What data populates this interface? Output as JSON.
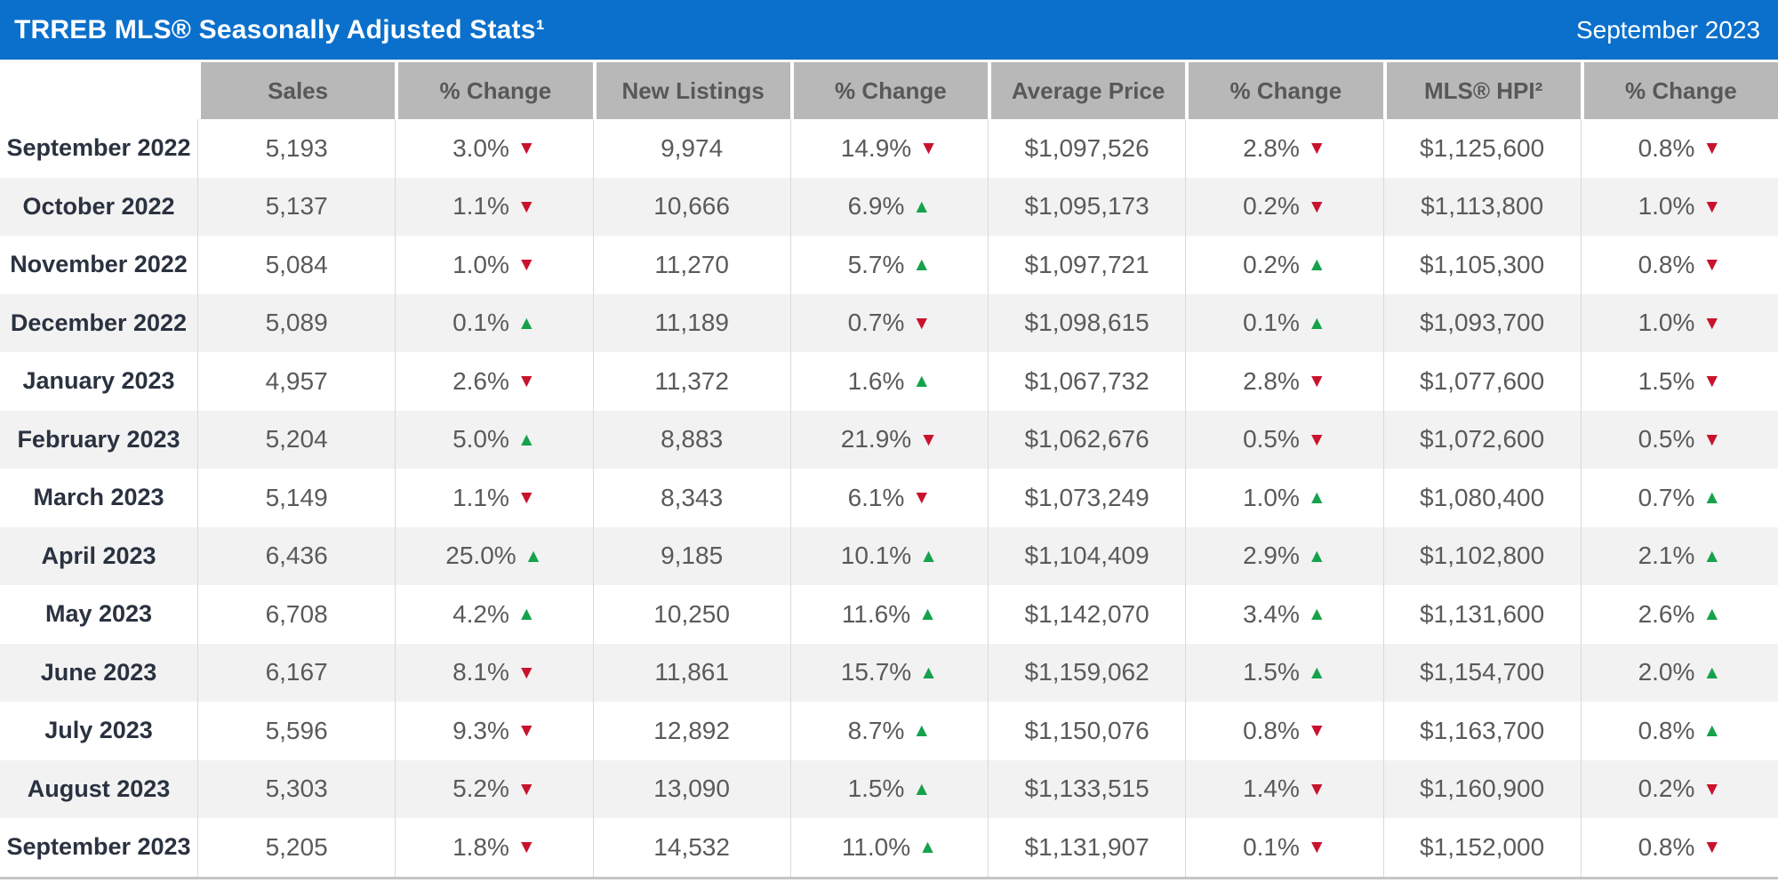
{
  "page": {
    "title_bar": {
      "title": "TRREB MLS® Seasonally Adjusted Stats¹",
      "period": "September 2023"
    }
  },
  "icons": {
    "up_triangle": "▲",
    "down_triangle": "▼"
  },
  "colors": {
    "brand_blue": "#0a70cc",
    "header_gray": "#b8b8b8",
    "header_text": "#57585a",
    "up_green": "#16a24c",
    "down_red": "#c9132e",
    "alt_row": "#f2f2f2",
    "value_text": "#595a5c",
    "month_text": "#2a3240"
  },
  "chart_data": {
    "type": "table",
    "title": "TRREB MLS® Seasonally Adjusted Stats¹",
    "period": "September 2023",
    "corner_header": "",
    "columns": [
      "Sales",
      "% Change",
      "New Listings",
      "% Change",
      "Average Price",
      "% Change",
      "MLS® HPI²",
      "% Change"
    ],
    "rows": [
      {
        "month": "September 2022",
        "cells": [
          {
            "text": "5,193"
          },
          {
            "text": "3.0%",
            "dir": "down"
          },
          {
            "text": "9,974"
          },
          {
            "text": "14.9%",
            "dir": "down"
          },
          {
            "text": "$1,097,526"
          },
          {
            "text": "2.8%",
            "dir": "down"
          },
          {
            "text": "$1,125,600"
          },
          {
            "text": "0.8%",
            "dir": "down"
          }
        ]
      },
      {
        "month": "October 2022",
        "cells": [
          {
            "text": "5,137"
          },
          {
            "text": "1.1%",
            "dir": "down"
          },
          {
            "text": "10,666"
          },
          {
            "text": "6.9%",
            "dir": "up"
          },
          {
            "text": "$1,095,173"
          },
          {
            "text": "0.2%",
            "dir": "down"
          },
          {
            "text": "$1,113,800"
          },
          {
            "text": "1.0%",
            "dir": "down"
          }
        ]
      },
      {
        "month": "November 2022",
        "cells": [
          {
            "text": "5,084"
          },
          {
            "text": "1.0%",
            "dir": "down"
          },
          {
            "text": "11,270"
          },
          {
            "text": "5.7%",
            "dir": "up"
          },
          {
            "text": "$1,097,721"
          },
          {
            "text": "0.2%",
            "dir": "up"
          },
          {
            "text": "$1,105,300"
          },
          {
            "text": "0.8%",
            "dir": "down"
          }
        ]
      },
      {
        "month": "December 2022",
        "cells": [
          {
            "text": "5,089"
          },
          {
            "text": "0.1%",
            "dir": "up"
          },
          {
            "text": "11,189"
          },
          {
            "text": "0.7%",
            "dir": "down"
          },
          {
            "text": "$1,098,615"
          },
          {
            "text": "0.1%",
            "dir": "up"
          },
          {
            "text": "$1,093,700"
          },
          {
            "text": "1.0%",
            "dir": "down"
          }
        ]
      },
      {
        "month": "January 2023",
        "cells": [
          {
            "text": "4,957"
          },
          {
            "text": "2.6%",
            "dir": "down"
          },
          {
            "text": "11,372"
          },
          {
            "text": "1.6%",
            "dir": "up"
          },
          {
            "text": "$1,067,732"
          },
          {
            "text": "2.8%",
            "dir": "down"
          },
          {
            "text": "$1,077,600"
          },
          {
            "text": "1.5%",
            "dir": "down"
          }
        ]
      },
      {
        "month": "February 2023",
        "cells": [
          {
            "text": "5,204"
          },
          {
            "text": "5.0%",
            "dir": "up"
          },
          {
            "text": "8,883"
          },
          {
            "text": "21.9%",
            "dir": "down"
          },
          {
            "text": "$1,062,676"
          },
          {
            "text": "0.5%",
            "dir": "down"
          },
          {
            "text": "$1,072,600"
          },
          {
            "text": "0.5%",
            "dir": "down"
          }
        ]
      },
      {
        "month": "March 2023",
        "cells": [
          {
            "text": "5,149"
          },
          {
            "text": "1.1%",
            "dir": "down"
          },
          {
            "text": "8,343"
          },
          {
            "text": "6.1%",
            "dir": "down"
          },
          {
            "text": "$1,073,249"
          },
          {
            "text": "1.0%",
            "dir": "up"
          },
          {
            "text": "$1,080,400"
          },
          {
            "text": "0.7%",
            "dir": "up"
          }
        ]
      },
      {
        "month": "April 2023",
        "cells": [
          {
            "text": "6,436"
          },
          {
            "text": "25.0%",
            "dir": "up"
          },
          {
            "text": "9,185"
          },
          {
            "text": "10.1%",
            "dir": "up"
          },
          {
            "text": "$1,104,409"
          },
          {
            "text": "2.9%",
            "dir": "up"
          },
          {
            "text": "$1,102,800"
          },
          {
            "text": "2.1%",
            "dir": "up"
          }
        ]
      },
      {
        "month": "May 2023",
        "cells": [
          {
            "text": "6,708"
          },
          {
            "text": "4.2%",
            "dir": "up"
          },
          {
            "text": "10,250"
          },
          {
            "text": "11.6%",
            "dir": "up"
          },
          {
            "text": "$1,142,070"
          },
          {
            "text": "3.4%",
            "dir": "up"
          },
          {
            "text": "$1,131,600"
          },
          {
            "text": "2.6%",
            "dir": "up"
          }
        ]
      },
      {
        "month": "June 2023",
        "cells": [
          {
            "text": "6,167"
          },
          {
            "text": "8.1%",
            "dir": "down"
          },
          {
            "text": "11,861"
          },
          {
            "text": "15.7%",
            "dir": "up"
          },
          {
            "text": "$1,159,062"
          },
          {
            "text": "1.5%",
            "dir": "up"
          },
          {
            "text": "$1,154,700"
          },
          {
            "text": "2.0%",
            "dir": "up"
          }
        ]
      },
      {
        "month": "July 2023",
        "cells": [
          {
            "text": "5,596"
          },
          {
            "text": "9.3%",
            "dir": "down"
          },
          {
            "text": "12,892"
          },
          {
            "text": "8.7%",
            "dir": "up"
          },
          {
            "text": "$1,150,076"
          },
          {
            "text": "0.8%",
            "dir": "down"
          },
          {
            "text": "$1,163,700"
          },
          {
            "text": "0.8%",
            "dir": "up"
          }
        ]
      },
      {
        "month": "August 2023",
        "cells": [
          {
            "text": "5,303"
          },
          {
            "text": "5.2%",
            "dir": "down"
          },
          {
            "text": "13,090"
          },
          {
            "text": "1.5%",
            "dir": "up"
          },
          {
            "text": "$1,133,515"
          },
          {
            "text": "1.4%",
            "dir": "down"
          },
          {
            "text": "$1,160,900"
          },
          {
            "text": "0.2%",
            "dir": "down"
          }
        ]
      },
      {
        "month": "September 2023",
        "cells": [
          {
            "text": "5,205"
          },
          {
            "text": "1.8%",
            "dir": "down"
          },
          {
            "text": "14,532"
          },
          {
            "text": "11.0%",
            "dir": "up"
          },
          {
            "text": "$1,131,907"
          },
          {
            "text": "0.1%",
            "dir": "down"
          },
          {
            "text": "$1,152,000"
          },
          {
            "text": "0.8%",
            "dir": "down"
          }
        ]
      }
    ]
  }
}
